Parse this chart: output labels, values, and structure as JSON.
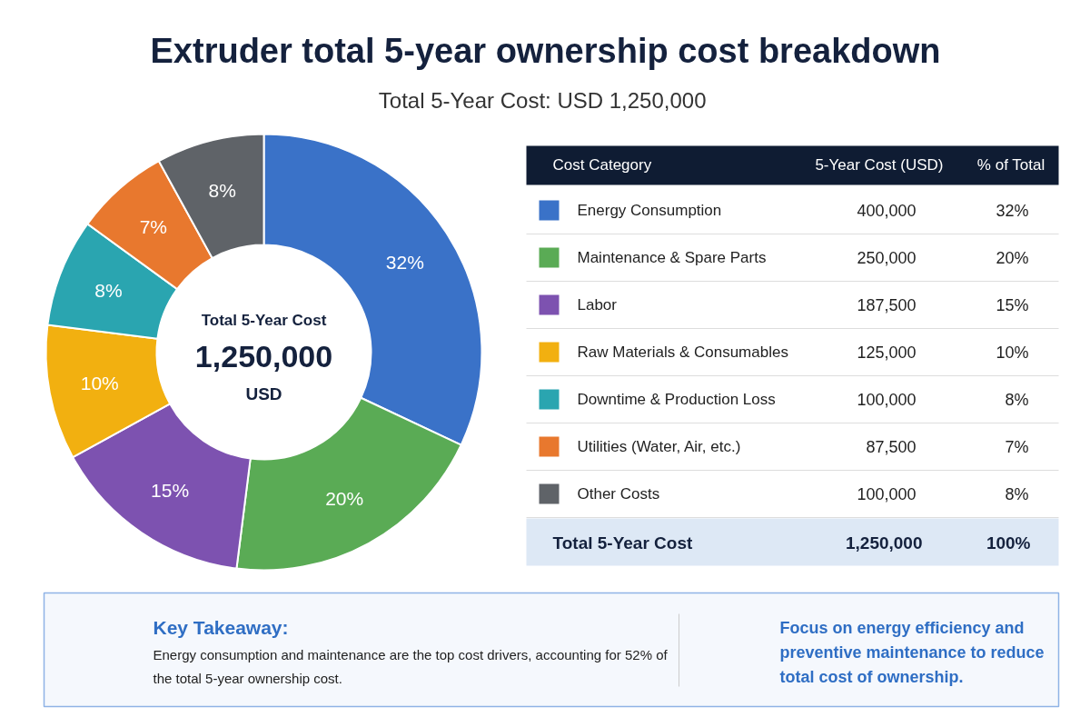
{
  "chart_data": {
    "type": "donut",
    "title": "Extruder total 5-year ownership cost breakdown",
    "subtitle": "Total 5-Year Cost:  USD 1,250,000",
    "categories": [
      "Energy Consumption",
      "Maintenance & Spare Parts",
      "Labor",
      "Raw Materials & Consumables",
      "Downtime & Production Loss",
      "Utilities (Water, Air, etc.)",
      "Other Costs"
    ],
    "values": [
      32,
      20,
      15,
      10,
      8,
      7,
      8
    ],
    "colors": [
      "#3a72c8",
      "#5aab55",
      "#7d52b0",
      "#f2b010",
      "#2aa5b0",
      "#e8782e",
      "#5f6368"
    ],
    "value_labels": [
      "32%",
      "20%",
      "15%",
      "10%",
      "8%",
      "7%",
      "8%"
    ],
    "legend": "right",
    "annotations": [
      "Total 5-Year Cost",
      "1,250,000",
      "USD",
      "Cost Category",
      "5-Year Cost (USD)",
      "% of Total",
      "Total 5-Year Cost",
      "1,250,000",
      "100%",
      "Key Takeaway:",
      "Energy consumption and maintenance are the top cost drivers, accounting for 52% of the total 5-year ownership cost.",
      "Focus on energy efficiency and preventive maintenance to reduce total cost of ownership.",
      "400,000",
      "250,000",
      "187,500",
      "125,000",
      "100,000",
      "87,500",
      "100,000"
    ]
  }
}
